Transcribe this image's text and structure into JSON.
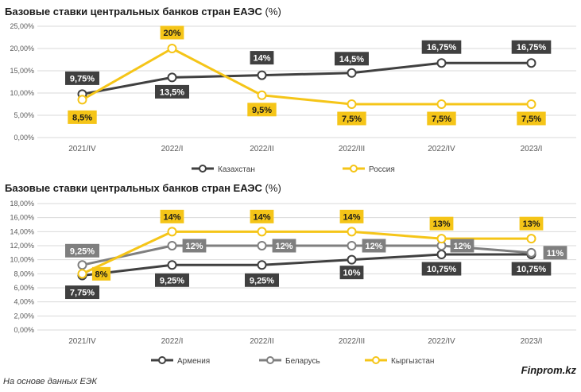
{
  "charts": [
    {
      "title": "Базовые ставки центральных банков стран ЕАЭС",
      "title_suffix": " (%)"
    },
    {
      "title": "Базовые ставки центральных банков стран ЕАЭС",
      "title_suffix": " (%)"
    }
  ],
  "footer": {
    "source": "На основе данных ЕЭК",
    "brand": "Finprom.kz"
  },
  "colors": {
    "kazakhstan": "#404040",
    "russia": "#F5C518",
    "armenia": "#404040",
    "belarus": "#7F7F7F",
    "kyrgyzstan": "#F5C518",
    "grid": "#d9d9d9",
    "label_dark": "#404040",
    "label_gray": "#7F7F7F",
    "label_yellow": "#F5C518"
  },
  "chart_data": [
    {
      "type": "line",
      "title": "Базовые ставки центральных банков стран ЕАЭС (%)",
      "categories": [
        "2021/IV",
        "2022/I",
        "2022/II",
        "2022/III",
        "2022/IV",
        "2023/I"
      ],
      "ylim": [
        0,
        25
      ],
      "yticks": [
        "0,00%",
        "5,00%",
        "10,00%",
        "15,00%",
        "20,00%",
        "25,00%"
      ],
      "grid": true,
      "legend_position": "bottom",
      "series": [
        {
          "name": "Казахстан",
          "values": [
            9.75,
            13.5,
            14,
            14.5,
            16.75,
            16.75
          ],
          "labels": [
            "9,75%",
            "13,5%",
            "14%",
            "14,5%",
            "16,75%",
            "16,75%"
          ]
        },
        {
          "name": "Россия",
          "values": [
            8.5,
            20,
            9.5,
            7.5,
            7.5,
            7.5
          ],
          "labels": [
            "8,5%",
            "20%",
            "9,5%",
            "7,5%",
            "7,5%",
            "7,5%"
          ]
        }
      ]
    },
    {
      "type": "line",
      "title": "Базовые ставки центральных банков стран ЕАЭС (%)",
      "categories": [
        "2021/IV",
        "2022/I",
        "2022/II",
        "2022/III",
        "2022/IV",
        "2023/I"
      ],
      "ylim": [
        0,
        18
      ],
      "yticks": [
        "0,00%",
        "2,00%",
        "4,00%",
        "6,00%",
        "8,00%",
        "10,00%",
        "12,00%",
        "14,00%",
        "16,00%",
        "18,00%"
      ],
      "grid": true,
      "legend_position": "bottom",
      "series": [
        {
          "name": "Армения",
          "values": [
            7.75,
            9.25,
            9.25,
            10,
            10.75,
            10.75
          ],
          "labels": [
            "7,75%",
            "9,25%",
            "9,25%",
            "10%",
            "10,75%",
            "10,75%"
          ]
        },
        {
          "name": "Беларусь",
          "values": [
            9.25,
            12,
            12,
            12,
            12,
            11
          ],
          "labels": [
            "9,25%",
            "12%",
            "12%",
            "12%",
            "12%",
            "11%"
          ]
        },
        {
          "name": "Кыргызстан",
          "values": [
            8,
            14,
            14,
            14,
            13,
            13
          ],
          "labels": [
            "8%",
            "14%",
            "14%",
            "14%",
            "13%",
            "13%"
          ]
        }
      ]
    }
  ]
}
